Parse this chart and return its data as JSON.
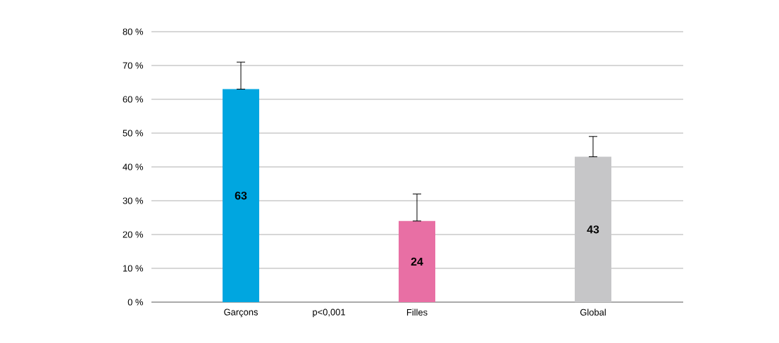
{
  "chart_data": {
    "type": "bar",
    "categories": [
      "Garçons",
      "Filles",
      "Global"
    ],
    "values": [
      63,
      24,
      43
    ],
    "colors": [
      "#00a6e0",
      "#e86fa4",
      "#c6c6c8"
    ],
    "errors": [
      [
        63,
        71
      ],
      [
        24,
        32
      ],
      [
        43,
        49
      ]
    ],
    "data_labels": true,
    "ylim": [
      0,
      80
    ],
    "yticks": [
      {
        "value": 0,
        "label": "0 %"
      },
      {
        "value": 10,
        "label": "10 %"
      },
      {
        "value": 20,
        "label": "20 %"
      },
      {
        "value": 30,
        "label": "30 %"
      },
      {
        "value": 40,
        "label": "40 %"
      },
      {
        "value": 50,
        "label": "50 %"
      },
      {
        "value": 60,
        "label": "60 %"
      },
      {
        "value": 70,
        "label": "70 %"
      },
      {
        "value": 80,
        "label": "80 %"
      }
    ],
    "grid": "y",
    "annotations": [
      "p<0,001"
    ]
  }
}
